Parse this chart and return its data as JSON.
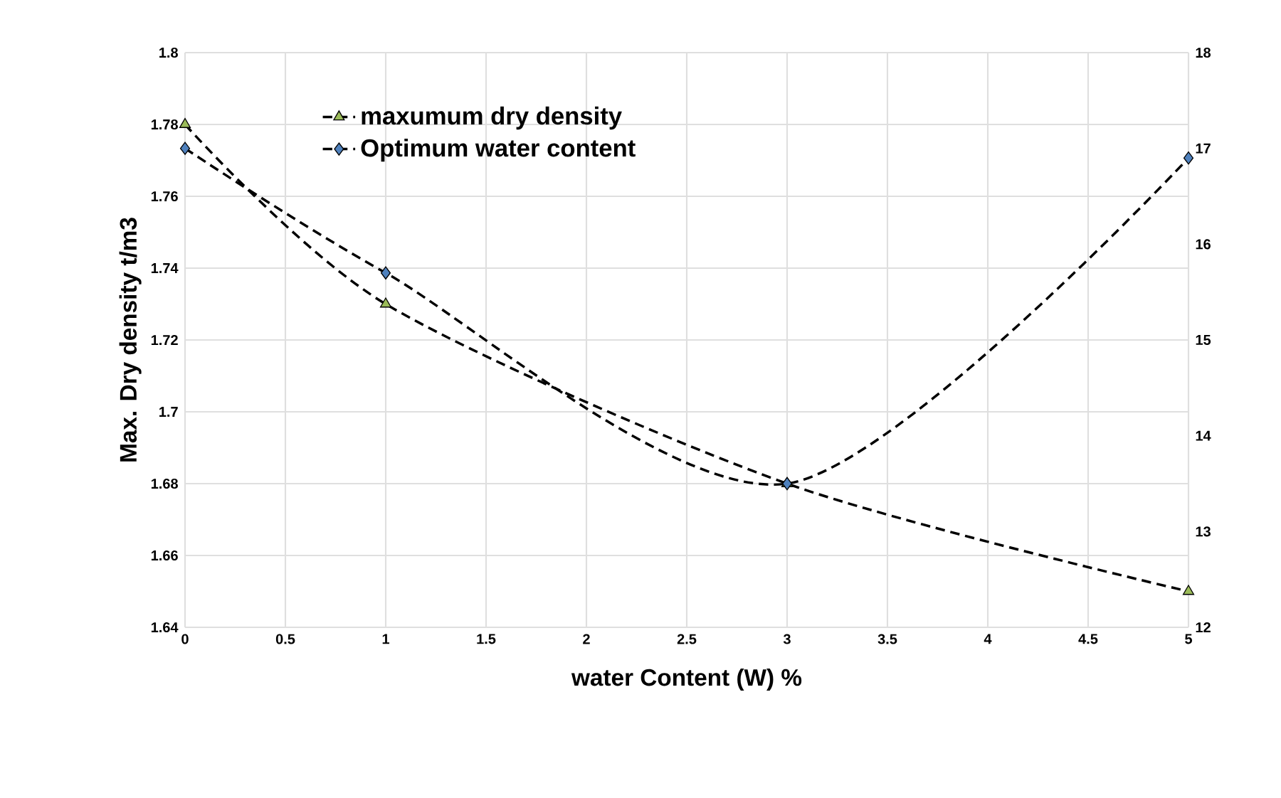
{
  "chart_data": {
    "type": "line",
    "xlabel": "water Content (W) %",
    "ylabel": "Max. Dry density t/m3",
    "x": [
      0,
      1,
      3,
      5
    ],
    "xlim": [
      0,
      5
    ],
    "xticks": [
      0,
      0.5,
      1,
      1.5,
      2,
      2.5,
      3,
      3.5,
      4,
      4.5,
      5
    ],
    "ylim": [
      1.64,
      1.8
    ],
    "yticks": [
      1.64,
      1.66,
      1.68,
      1.7,
      1.72,
      1.74,
      1.76,
      1.78,
      1.8
    ],
    "y2lim": [
      12,
      18
    ],
    "y2ticks": [
      12,
      13,
      14,
      15,
      16,
      17,
      18
    ],
    "grid": true,
    "legend": "top left",
    "line_style": "dashed",
    "series": [
      {
        "name": "maxumum dry density",
        "color": "#9bbb59",
        "marker": "triangle",
        "values": [
          1.78,
          1.73,
          1.68,
          1.65
        ]
      },
      {
        "name": "Optimum water content",
        "color": "#4f81bd",
        "marker": "diamond",
        "axis": "y2",
        "values": [
          17.0,
          15.7,
          13.5,
          16.9
        ]
      }
    ]
  }
}
